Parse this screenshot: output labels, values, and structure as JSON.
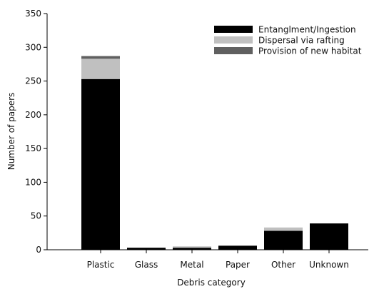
{
  "chart_data": {
    "type": "bar",
    "stacked": true,
    "title": "",
    "xlabel": "Debris category",
    "ylabel": "Number of papers",
    "categories": [
      "Plastic",
      "Glass",
      "Metal",
      "Paper",
      "Other",
      "Unknown"
    ],
    "series": [
      {
        "name": "Entanglment/Ingestion",
        "color": "#000000",
        "values": [
          253,
          3,
          3,
          6,
          28,
          39
        ]
      },
      {
        "name": "Dispersal via rafting",
        "color": "#c0c0c0",
        "values": [
          30,
          0,
          2,
          0,
          5,
          0
        ]
      },
      {
        "name": "Provision of new habitat",
        "color": "#606060",
        "values": [
          4,
          0,
          0,
          0,
          0,
          0
        ]
      }
    ],
    "ylim": [
      0,
      350
    ],
    "yticks": [
      0,
      50,
      100,
      150,
      200,
      250,
      300,
      350
    ],
    "grid": false,
    "legend_position": "top-right"
  }
}
